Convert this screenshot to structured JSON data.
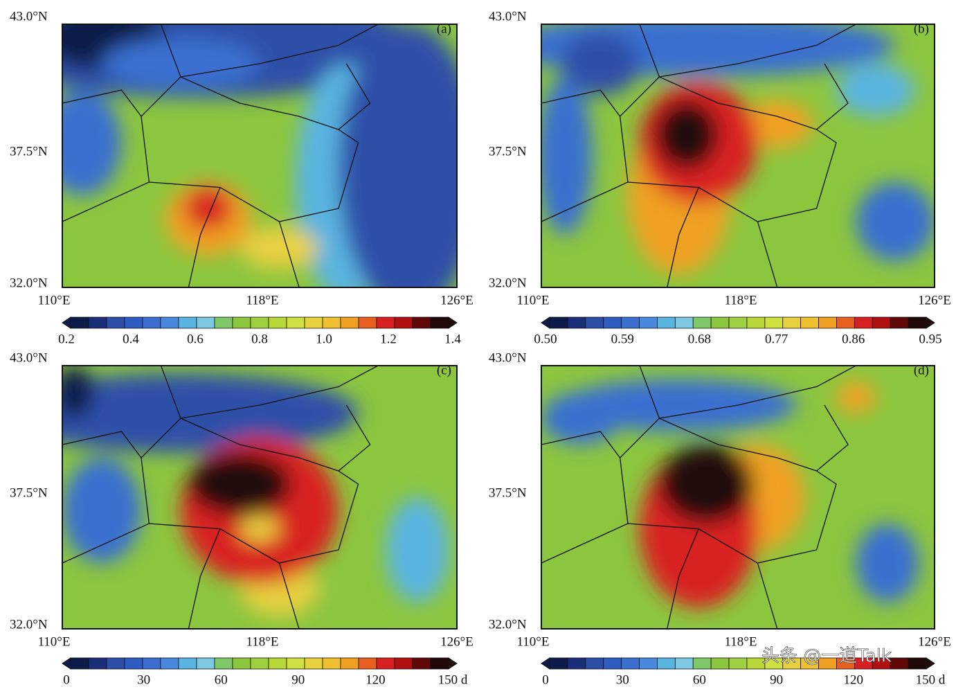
{
  "panels": [
    {
      "label": "(a)",
      "lat_labels": [
        "43.0°N",
        "37.5°N",
        "32.0°N"
      ],
      "lon_labels": [
        "110°E",
        "118°E",
        "126°E"
      ],
      "colorbar_labels": [
        "0.2",
        "0.4",
        "0.6",
        "0.8",
        "1.0",
        "1.2",
        "1.4"
      ]
    },
    {
      "label": "(b)",
      "lat_labels": [
        "43.0°N",
        "37.5°N",
        "32.0°N"
      ],
      "lon_labels": [
        "110°E",
        "118°E",
        "126°E"
      ],
      "colorbar_labels": [
        "0.50",
        "0.59",
        "0.68",
        "0.77",
        "0.86",
        "0.95"
      ]
    },
    {
      "label": "(c)",
      "lat_labels": [
        "43.0°N",
        "37.5°N",
        "32.0°N"
      ],
      "lon_labels": [
        "110°E",
        "118°E",
        "126°E"
      ],
      "colorbar_labels": [
        "0",
        "30",
        "60",
        "90",
        "120",
        "150 d"
      ]
    },
    {
      "label": "(d)",
      "lat_labels": [
        "43.0°N",
        "37.5°N",
        "32.0°N"
      ],
      "lon_labels": [
        "110°E",
        "118°E",
        "126°E"
      ],
      "colorbar_labels": [
        "0",
        "30",
        "60",
        "90",
        "120",
        "150 d"
      ]
    }
  ],
  "watermark": "头条 @一道Talk"
}
